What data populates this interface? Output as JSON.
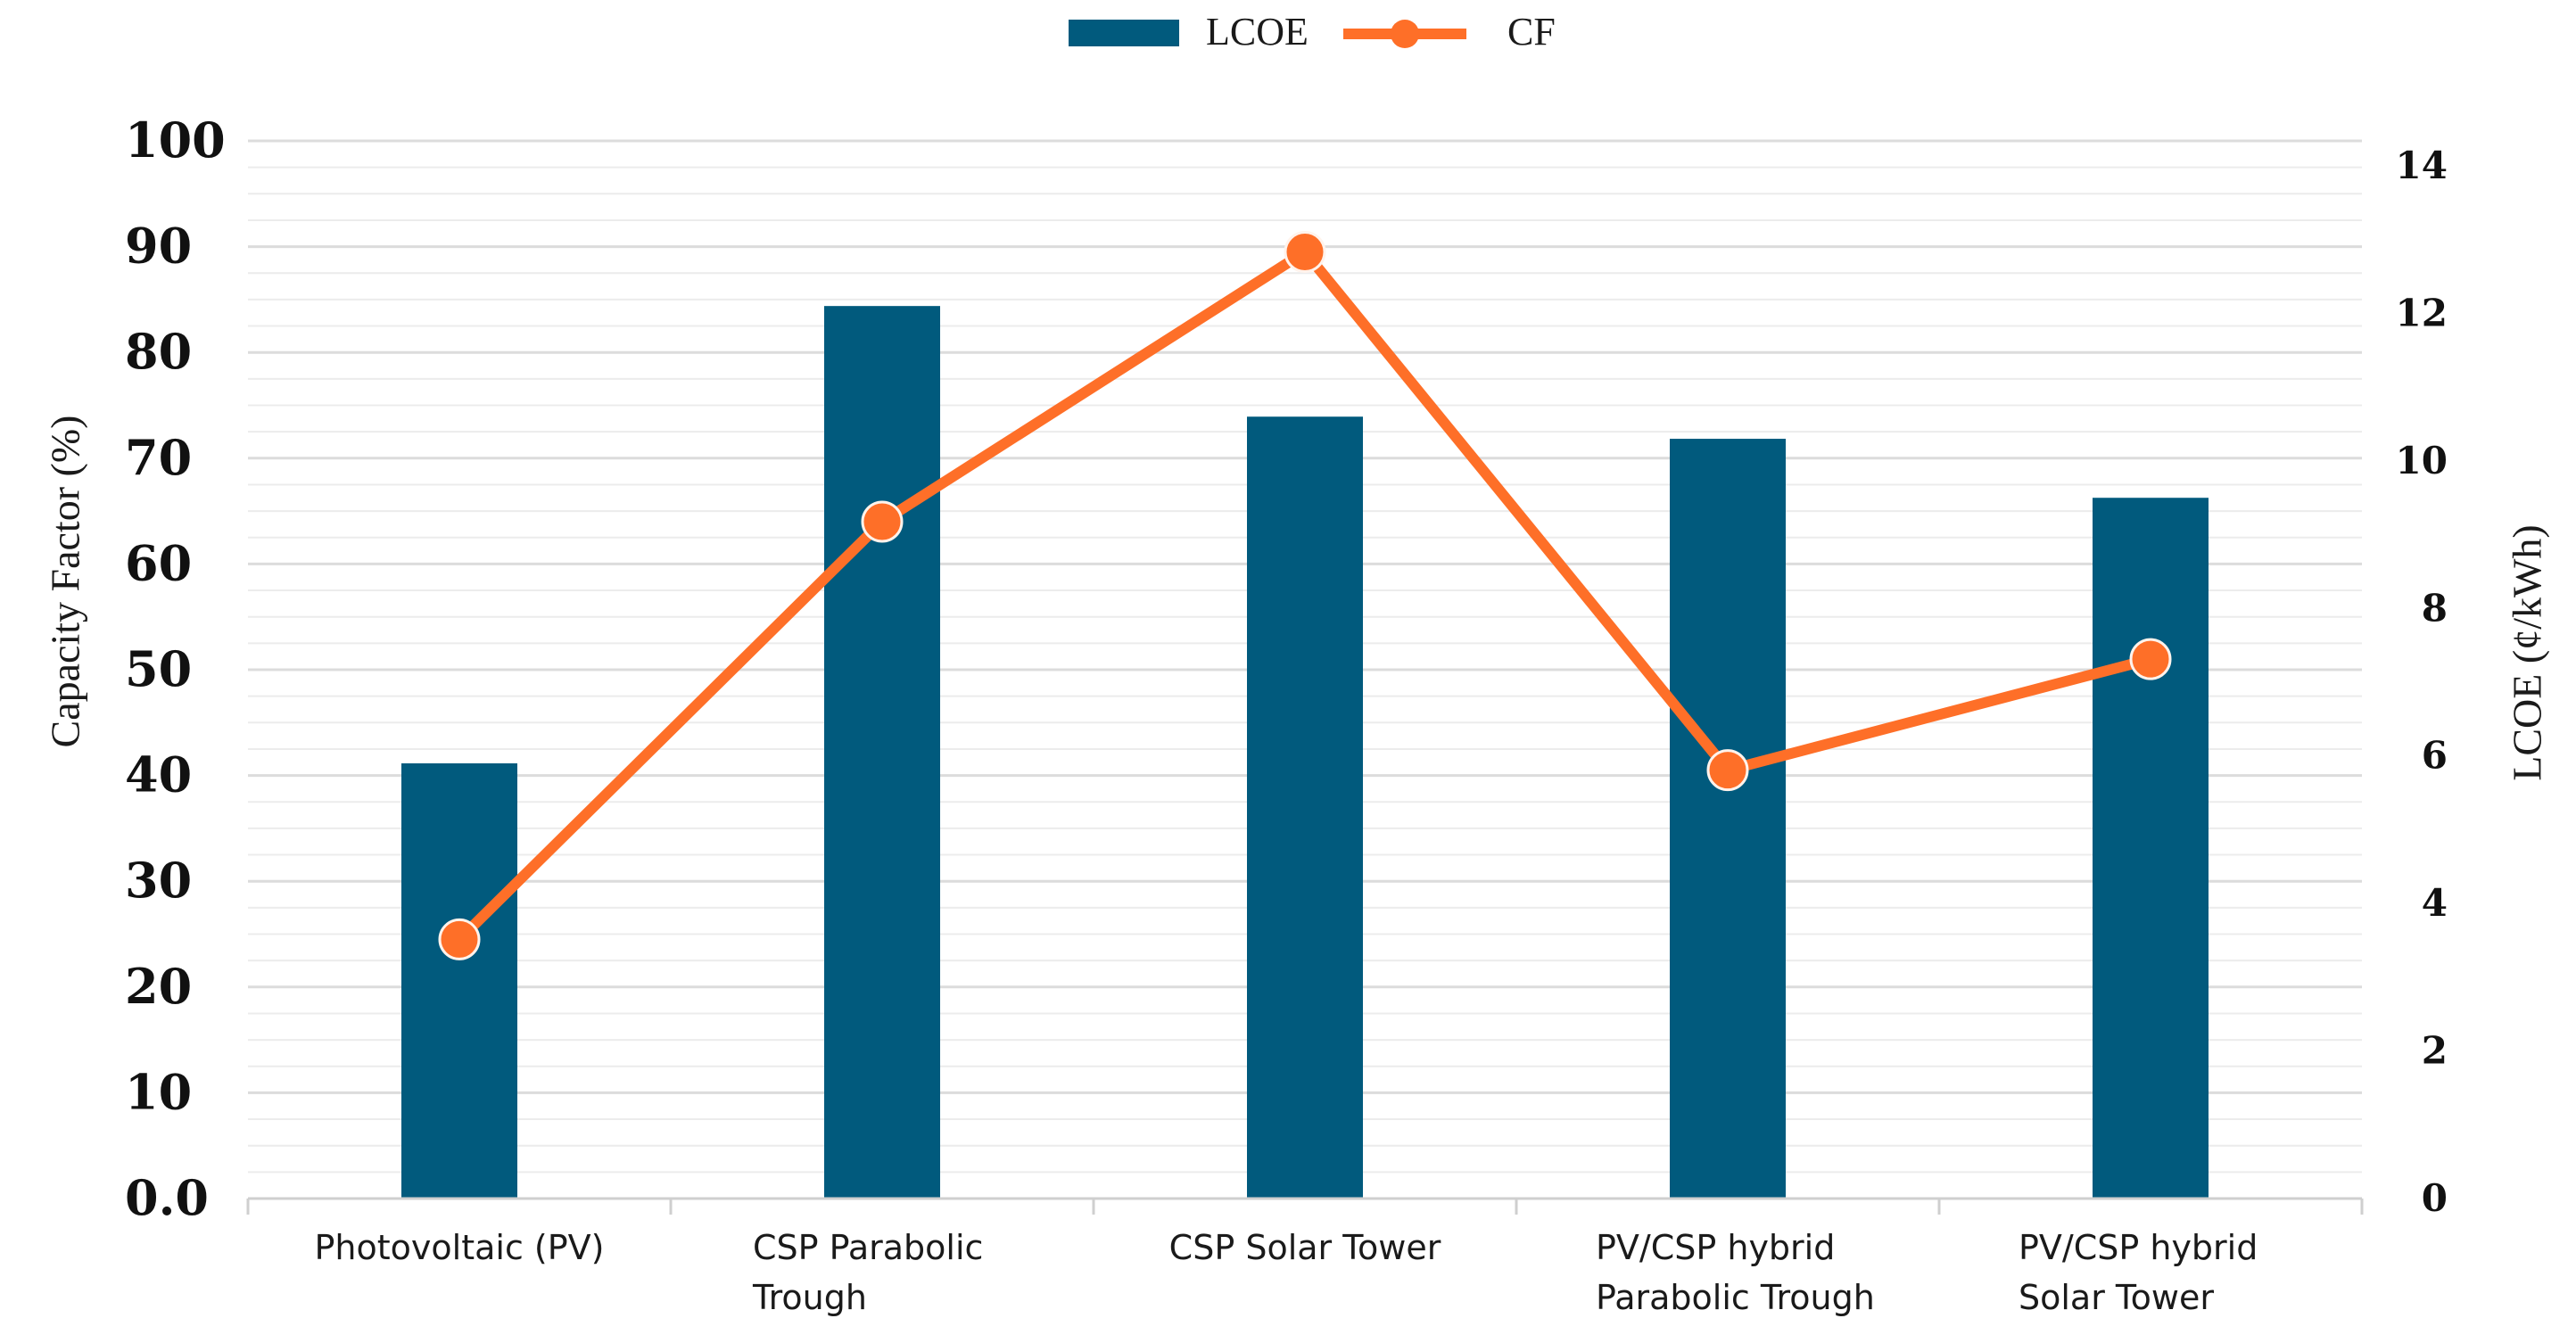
{
  "chart_data": {
    "type": "bar",
    "categories": [
      [
        "Photovoltaic (PV)"
      ],
      [
        "CSP Parabolic",
        "Trough"
      ],
      [
        "CSP Solar Tower"
      ],
      [
        "PV/CSP hybrid",
        "Parabolic Trough"
      ],
      [
        "PV/CSP hybrid",
        "Solar Tower"
      ]
    ],
    "series": [
      {
        "name": "LCOE",
        "type": "bar",
        "axis": "right",
        "values": [
          5.9,
          12.1,
          10.6,
          10.3,
          9.5
        ],
        "color": "#015a7d"
      },
      {
        "name": "CF",
        "type": "line",
        "axis": "left",
        "values": [
          24.5,
          64,
          89.5,
          40.5,
          51
        ],
        "color": "#fe6f28"
      }
    ],
    "left_axis": {
      "label": "Capacity Factor (%)",
      "min": 0,
      "max": 100,
      "ticks": [
        "0.0",
        "10",
        "20",
        "30",
        "40",
        "50",
        "60",
        "70",
        "80",
        "90",
        "100"
      ]
    },
    "right_axis": {
      "label": "LCOE (¢/kWh)",
      "min": 0,
      "max": 14,
      "ticks": [
        "0",
        "2",
        "4",
        "6",
        "8",
        "10",
        "12",
        "14"
      ]
    },
    "legend": {
      "position": "top-center",
      "entries": [
        "LCOE",
        "CF"
      ]
    },
    "grid": true
  }
}
